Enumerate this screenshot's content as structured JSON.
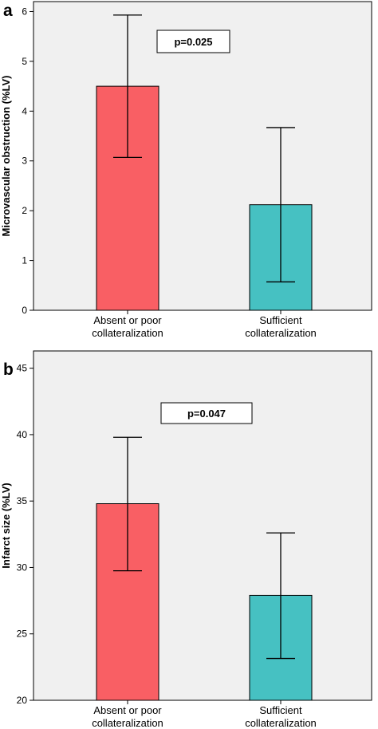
{
  "chart_data": [
    {
      "type": "bar",
      "panel": "a",
      "categories": [
        [
          "Absent or poor",
          "collateralization"
        ],
        [
          "Sufficient",
          "collateralization"
        ]
      ],
      "values": [
        4.5,
        2.12
      ],
      "error_low": [
        3.07,
        0.57
      ],
      "error_high": [
        5.93,
        3.67
      ],
      "ylabel": "Microvascular obstruction (%LV)",
      "ylim": [
        0,
        6.2
      ],
      "yticks": [
        0,
        1,
        2,
        3,
        4,
        5,
        6
      ],
      "annotation": "p=0.025",
      "grid": false,
      "colors": [
        "#f95f64",
        "#46c1c2"
      ]
    },
    {
      "type": "bar",
      "panel": "b",
      "categories": [
        [
          "Absent or poor",
          "collateralization"
        ],
        [
          "Sufficient",
          "collateralization"
        ]
      ],
      "values": [
        34.8,
        27.9
      ],
      "error_low": [
        29.75,
        23.15
      ],
      "error_high": [
        39.8,
        32.6
      ],
      "ylabel": "Infarct size (%LV)",
      "ylim": [
        20,
        46.3
      ],
      "yticks": [
        20,
        25,
        30,
        35,
        40,
        45
      ],
      "annotation": "p=0.047",
      "grid": false,
      "colors": [
        "#f95f64",
        "#46c1c2"
      ]
    }
  ]
}
